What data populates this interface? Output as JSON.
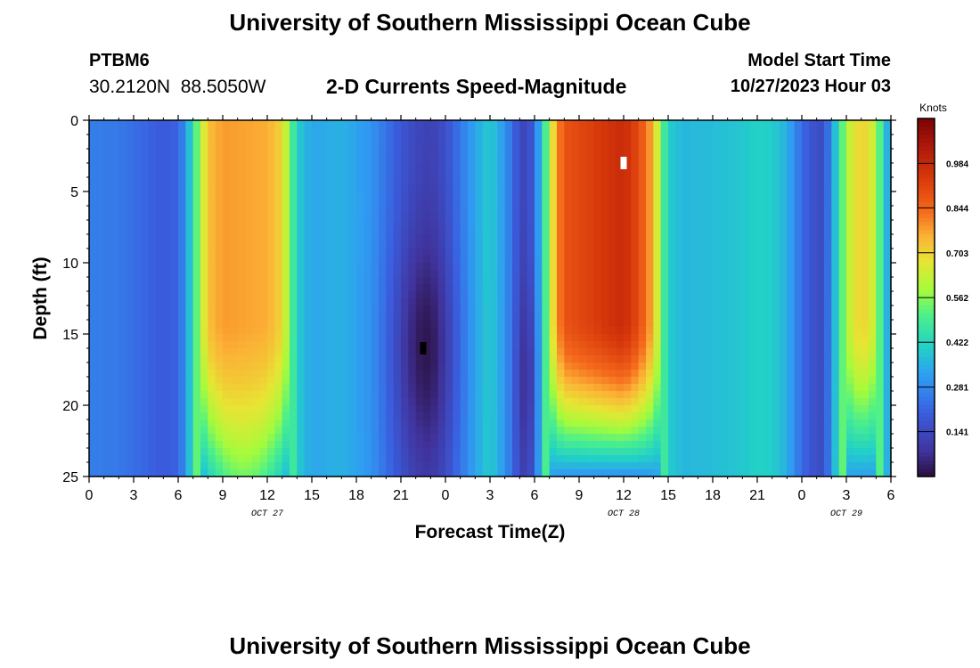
{
  "header": {
    "title": "University of Southern Mississippi Ocean Cube",
    "station_id": "PTBM6",
    "coordinates": "30.2120N  88.5050W",
    "subtitle": "2-D Currents Speed-Magnitude",
    "model_start_label": "Model Start Time",
    "model_start_value": "10/27/2023 Hour 03"
  },
  "footer": {
    "title": "University of Southern Mississippi Ocean Cube"
  },
  "chart_data": {
    "type": "heatmap",
    "xlabel": "Forecast Time(Z)",
    "ylabel": "Depth (ft)",
    "x_hours_range": [
      0,
      54
    ],
    "xticks": [
      {
        "h": 0,
        "label": "0"
      },
      {
        "h": 3,
        "label": "3"
      },
      {
        "h": 6,
        "label": "6"
      },
      {
        "h": 9,
        "label": "9"
      },
      {
        "h": 12,
        "label": "12"
      },
      {
        "h": 15,
        "label": "15"
      },
      {
        "h": 18,
        "label": "18"
      },
      {
        "h": 21,
        "label": "21"
      },
      {
        "h": 24,
        "label": "0"
      },
      {
        "h": 27,
        "label": "3"
      },
      {
        "h": 30,
        "label": "6"
      },
      {
        "h": 33,
        "label": "9"
      },
      {
        "h": 36,
        "label": "12"
      },
      {
        "h": 39,
        "label": "15"
      },
      {
        "h": 42,
        "label": "18"
      },
      {
        "h": 45,
        "label": "21"
      },
      {
        "h": 48,
        "label": "0"
      },
      {
        "h": 51,
        "label": "3"
      },
      {
        "h": 54,
        "label": "6"
      }
    ],
    "date_labels": [
      {
        "h": 12,
        "label": "OCT 27"
      },
      {
        "h": 36,
        "label": "OCT 28"
      },
      {
        "h": 51,
        "label": "OCT 29"
      }
    ],
    "ylim": [
      0,
      25
    ],
    "yticks": [
      0,
      5,
      10,
      15,
      20,
      25
    ],
    "colorbar": {
      "unit": "Knots",
      "range": [
        0,
        1.125
      ],
      "ticks": [
        "0.984",
        "0.844",
        "0.703",
        "0.562",
        "0.422",
        "0.281",
        "0.141"
      ],
      "tick_values": [
        0.984,
        0.844,
        0.703,
        0.562,
        0.422,
        0.281,
        0.141
      ]
    },
    "surface_profile": {
      "hours": [
        0,
        2,
        4,
        5,
        6,
        6.5,
        7,
        7.5,
        8,
        9,
        12,
        13,
        13.5,
        14,
        15,
        17,
        19,
        20,
        21,
        22,
        23,
        24,
        25,
        26,
        27,
        28,
        29,
        29.5,
        30,
        30.5,
        31,
        31.5,
        32,
        36,
        37,
        38,
        38.5,
        39,
        40,
        42,
        44,
        45,
        46,
        47,
        48,
        49,
        49.5,
        50,
        51,
        52,
        53,
        53.5,
        54
      ],
      "speeds": [
        0.26,
        0.25,
        0.21,
        0.19,
        0.21,
        0.3,
        0.45,
        0.6,
        0.73,
        0.78,
        0.76,
        0.7,
        0.55,
        0.4,
        0.33,
        0.35,
        0.3,
        0.24,
        0.18,
        0.14,
        0.12,
        0.16,
        0.25,
        0.33,
        0.4,
        0.3,
        0.15,
        0.12,
        0.22,
        0.4,
        0.6,
        0.78,
        0.88,
        0.98,
        0.9,
        0.75,
        0.55,
        0.4,
        0.36,
        0.37,
        0.39,
        0.41,
        0.4,
        0.35,
        0.22,
        0.15,
        0.16,
        0.3,
        0.6,
        0.72,
        0.62,
        0.4,
        0.3
      ]
    },
    "markers": [
      {
        "type": "max",
        "hour": 36,
        "depth": 3
      },
      {
        "type": "min",
        "hour": 22.5,
        "depth": 16
      }
    ]
  }
}
